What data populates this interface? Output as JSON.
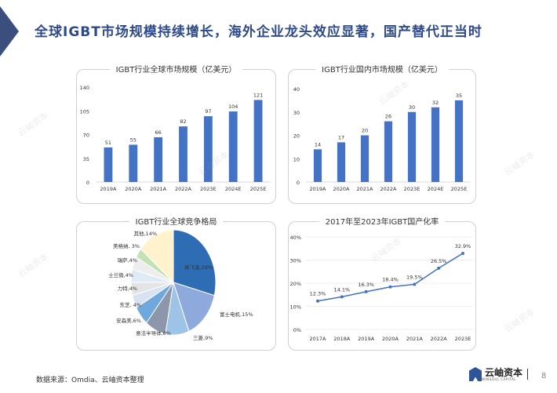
{
  "header": {
    "title": "全球IGBT市场规模持续增长，海外企业龙头效应显著，国产替代正当时"
  },
  "watermark": "云岫资本",
  "chart_data": [
    {
      "type": "bar",
      "title": "IGBT行业全球市场规模（亿美元）",
      "categories": [
        "2019A",
        "2020A",
        "2021A",
        "2022A",
        "2023E",
        "2024E",
        "2025E"
      ],
      "values": [
        51,
        55,
        66,
        82,
        97,
        104,
        121
      ],
      "ylim": [
        0,
        140
      ],
      "yticks": [
        "0",
        "35",
        "70",
        "105",
        "140"
      ],
      "color": "#4472C4",
      "grid": false
    },
    {
      "type": "bar",
      "title": "IGBT行业国内市场规模（亿美元）",
      "categories": [
        "2019A",
        "2020A",
        "2021A",
        "2022A",
        "2023E",
        "2024E",
        "2025E"
      ],
      "values": [
        14,
        17,
        20,
        26,
        30,
        32,
        35
      ],
      "ylim": [
        0,
        40
      ],
      "yticks": [
        "0",
        "10",
        "20",
        "30",
        "40"
      ],
      "color": "#4472C4",
      "grid": false
    },
    {
      "type": "pie",
      "title": "IGBT行业全球竞争格局",
      "slices": [
        {
          "label": "英飞凌,29%",
          "value": 29,
          "color": "#2E6DB4"
        },
        {
          "label": "富士电机,15%",
          "value": 15,
          "color": "#8EA9DB"
        },
        {
          "label": "三菱,9%",
          "value": 9,
          "color": "#9DC3E6"
        },
        {
          "label": "意法半导体,8%",
          "value": 8,
          "color": "#8C97AC"
        },
        {
          "label": "安森美,6%",
          "value": 6,
          "color": "#6FA8DC"
        },
        {
          "label": "东芝, 4%",
          "value": 4,
          "color": "#D9E2F3"
        },
        {
          "label": "力特,4%",
          "value": 4,
          "color": "#E4E4E4"
        },
        {
          "label": "士兰微,4%",
          "value": 4,
          "color": "#DEEBF7"
        },
        {
          "label": "瑞萨,4%",
          "value": 4,
          "color": "#EDEDED"
        },
        {
          "label": "美格纳, 3%",
          "value": 3,
          "color": "#C5E0B4"
        },
        {
          "label": "其他,14%",
          "value": 14,
          "color": "#FFF2CC"
        }
      ]
    },
    {
      "type": "line",
      "title": "2017年至2023年IGBT国产化率",
      "categories": [
        "2017A",
        "2018A",
        "2019A",
        "2020A",
        "2021A",
        "2022A",
        "2023E"
      ],
      "values": [
        12.3,
        14.1,
        16.3,
        18.4,
        19.5,
        26.5,
        32.9
      ],
      "labels": [
        "12.3%",
        "14.1%",
        "16.3%",
        "18.4%",
        "19.5%",
        "26.5%",
        "32.9%"
      ],
      "ylim": [
        0,
        40
      ],
      "yticks": [
        "0%",
        "10%",
        "20%",
        "30%",
        "40%"
      ],
      "color": "#4472C4",
      "grid": true
    }
  ],
  "footer": {
    "source": "数据来源：Omdia、云岫资本整理",
    "logo_text": "云岫资本",
    "logo_sub": "WINSOUL CAPITAL",
    "page": "8"
  }
}
